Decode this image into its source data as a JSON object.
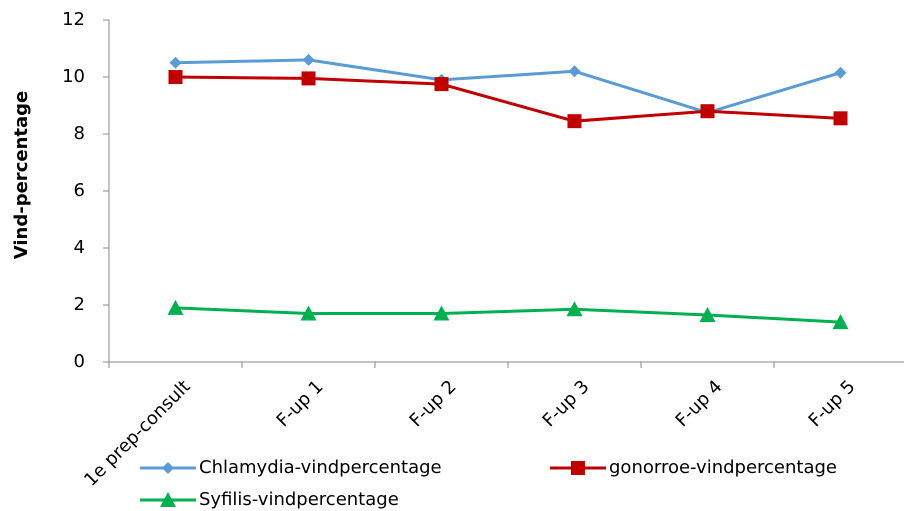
{
  "chart_data": {
    "type": "line",
    "y_label": "Vind-percentage",
    "categories": [
      "1e prep-consult",
      "F-up 1",
      "F-up 2",
      "F-up 3",
      "F-up 4",
      "F-up 5"
    ],
    "series": [
      {
        "name": "Chlamydia-vindpercentage",
        "color": "#5b9bd5",
        "marker": "diamond",
        "values": [
          10.5,
          10.6,
          9.9,
          10.2,
          8.75,
          10.15
        ]
      },
      {
        "name": "gonorroe-vindpercentage",
        "color": "#c00000",
        "marker": "square",
        "values": [
          10.0,
          9.95,
          9.75,
          8.45,
          8.8,
          8.55
        ]
      },
      {
        "name": "Syfilis-vindpercentage",
        "color": "#00b050",
        "marker": "triangle",
        "values": [
          1.9,
          1.7,
          1.7,
          1.85,
          1.65,
          1.4
        ]
      }
    ],
    "ylim": [
      0,
      12
    ],
    "yticks": [
      0,
      2,
      4,
      6,
      8,
      10,
      12
    ],
    "grid": false,
    "legend": "bottom"
  }
}
